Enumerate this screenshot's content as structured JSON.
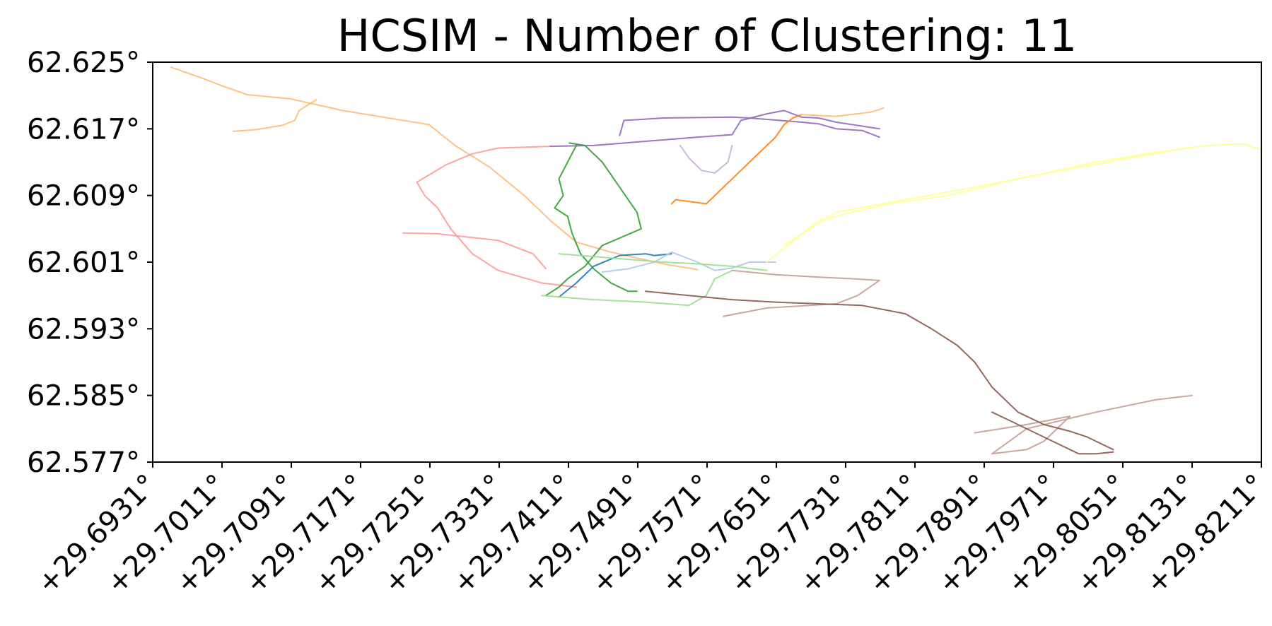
{
  "chart_data": {
    "type": "line",
    "title": "HCSIM - Number of Clustering: 11",
    "xlabel": "",
    "ylabel": "",
    "xlim": [
      29.6931,
      29.8211
    ],
    "ylim": [
      62.577,
      62.625
    ],
    "x_ticks": [
      29.6931,
      29.7011,
      29.7091,
      29.7171,
      29.7251,
      29.7331,
      29.7411,
      29.7491,
      29.7571,
      29.7651,
      29.7731,
      29.7811,
      29.7891,
      29.7971,
      29.8051,
      29.8131,
      29.8211
    ],
    "x_tick_labels": [
      "+29.6931°",
      "+29.7011°",
      "+29.7091°",
      "+29.7171°",
      "+29.7251°",
      "+29.7331°",
      "+29.7411°",
      "+29.7491°",
      "+29.7571°",
      "+29.7651°",
      "+29.7731°",
      "+29.7811°",
      "+29.7891°",
      "+29.7971°",
      "+29.8051°",
      "+29.8131°",
      "+29.8211°"
    ],
    "y_ticks": [
      62.625,
      62.617,
      62.609,
      62.601,
      62.593,
      62.585,
      62.577
    ],
    "y_tick_labels": [
      "62.625°",
      "62.617°",
      "62.609°",
      "62.601°",
      "62.593°",
      "62.585°",
      "62.577°"
    ],
    "grid": false,
    "legend": false,
    "series": [
      {
        "color": "#ffbb78",
        "x": [
          29.6952,
          29.6985,
          29.701,
          29.704,
          29.709,
          29.715,
          29.725,
          29.728,
          29.732,
          29.736,
          29.739,
          29.742,
          29.746,
          29.752,
          29.756
        ],
        "y": [
          62.6244,
          62.6232,
          62.6222,
          62.6211,
          62.6206,
          62.6192,
          62.6175,
          62.615,
          62.6124,
          62.609,
          62.606,
          62.6034,
          62.6022,
          62.6008,
          62.6001
        ]
      },
      {
        "color": "#ffbb78",
        "x": [
          29.7024,
          29.705,
          29.708,
          29.7095,
          29.71,
          29.712
        ],
        "y": [
          62.6167,
          62.6169,
          62.6174,
          62.618,
          62.6192,
          62.6205
        ]
      },
      {
        "color": "#ff9896",
        "x": [
          29.739,
          29.733,
          29.73,
          29.727,
          29.7236,
          29.7245,
          29.726,
          29.7275,
          29.73,
          29.733,
          29.738,
          29.742
        ],
        "y": [
          62.6149,
          62.6147,
          62.614,
          62.6127,
          62.6106,
          62.609,
          62.6075,
          62.605,
          62.602,
          62.6,
          62.5985,
          62.598
        ]
      },
      {
        "color": "#ff9896",
        "x": [
          29.722,
          29.726,
          29.733,
          29.737,
          29.7385
        ],
        "y": [
          62.6045,
          62.6044,
          62.6036,
          62.602,
          62.6002
        ]
      },
      {
        "color": "#9467bd",
        "x": [
          29.739,
          29.744,
          29.75,
          29.756,
          29.76,
          29.761,
          29.764,
          29.766,
          29.768,
          29.77,
          29.772,
          29.777
        ],
        "y": [
          62.6149,
          62.615,
          62.6155,
          62.616,
          62.6163,
          62.618,
          62.6188,
          62.6192,
          62.6184,
          62.6183,
          62.6178,
          62.617
        ]
      },
      {
        "color": "#9467bd",
        "x": [
          29.747,
          29.7475,
          29.752,
          29.76,
          29.762,
          29.768,
          29.77,
          29.772,
          29.775,
          29.777
        ],
        "y": [
          62.6162,
          62.618,
          62.6183,
          62.6184,
          62.6183,
          62.6178,
          62.6176,
          62.617,
          62.6168,
          62.616
        ]
      },
      {
        "color": "#c5b0d5",
        "x": [
          29.754,
          29.755,
          29.7565,
          29.758,
          29.7595,
          29.76
        ],
        "y": [
          62.615,
          62.6135,
          62.612,
          62.6117,
          62.613,
          62.615
        ]
      },
      {
        "color": "#2ca02c",
        "x": [
          29.742,
          29.741,
          29.74,
          29.7405,
          29.7395,
          29.741,
          29.7415,
          29.7425,
          29.744,
          29.746,
          29.748,
          29.749
        ],
        "y": [
          62.615,
          62.613,
          62.611,
          62.609,
          62.6075,
          62.6065,
          62.6045,
          62.602,
          62.6002,
          62.5985,
          62.5975,
          62.5975
        ]
      },
      {
        "color": "#2ca02c",
        "x": [
          29.7412,
          29.743,
          29.745,
          29.747,
          29.749,
          29.7495,
          29.745,
          29.743,
          29.741,
          29.74,
          29.7385
        ],
        "y": [
          62.6153,
          62.615,
          62.613,
          62.61,
          62.607,
          62.605,
          62.603,
          62.6005,
          62.599,
          62.598,
          62.597
        ]
      },
      {
        "color": "#1f77b4",
        "x": [
          29.74,
          29.742,
          29.744,
          29.747,
          29.75,
          29.751,
          29.753
        ],
        "y": [
          62.5968,
          62.5985,
          62.6005,
          62.6018,
          62.602,
          62.6018,
          62.602
        ]
      },
      {
        "color": "#aec7e8",
        "x": [
          29.745,
          29.748,
          29.751,
          29.753,
          29.756,
          29.758,
          29.76,
          29.762,
          29.765
        ],
        "y": [
          62.5998,
          62.6002,
          62.601,
          62.6022,
          62.601,
          62.6,
          62.6003,
          62.601,
          62.601
        ]
      },
      {
        "color": "#98df8a",
        "x": [
          29.738,
          29.744,
          29.75,
          29.755,
          29.757,
          29.758,
          29.76
        ],
        "y": [
          62.597,
          62.5965,
          62.5962,
          62.5958,
          62.597,
          62.599,
          62.6
        ]
      },
      {
        "color": "#98df8a",
        "x": [
          29.74,
          29.746,
          29.752,
          29.756,
          29.76,
          29.764
        ],
        "y": [
          62.602,
          62.6015,
          62.601,
          62.6008,
          62.6005,
          62.6
        ]
      },
      {
        "color": "#ff7f0e",
        "x": [
          29.753,
          29.7535,
          29.757,
          29.759,
          29.762,
          29.765,
          29.766,
          29.767,
          29.768
        ],
        "y": [
          62.608,
          62.6085,
          62.608,
          62.61,
          62.613,
          62.616,
          62.6175,
          62.6183,
          62.6187
        ]
      },
      {
        "color": "#ffbb78",
        "x": [
          29.768,
          29.772,
          29.776,
          29.7775
        ],
        "y": [
          62.6187,
          62.6185,
          62.619,
          62.6195
        ]
      },
      {
        "color": "#ffff99",
        "x": [
          29.764,
          29.77,
          29.778,
          29.785,
          29.793,
          29.802,
          29.809,
          29.815,
          29.819,
          29.8211
        ],
        "y": [
          62.601,
          62.606,
          62.608,
          62.609,
          62.611,
          62.613,
          62.6142,
          62.615,
          62.6152,
          62.6145
        ]
      },
      {
        "color": "#ffff99",
        "x": [
          29.766,
          29.772,
          29.78,
          29.788,
          29.797,
          29.806,
          29.813
        ],
        "y": [
          62.603,
          62.607,
          62.6085,
          62.61,
          62.6118,
          62.6135,
          62.6148
        ]
      },
      {
        "color": "#c49c94",
        "x": [
          29.76,
          29.765,
          29.77,
          29.774,
          29.777,
          29.7745,
          29.772,
          29.764,
          29.759
        ],
        "y": [
          62.6,
          62.5995,
          62.5992,
          62.599,
          62.5988,
          62.597,
          62.596,
          62.5955,
          62.5945
        ]
      },
      {
        "color": "#c49c94",
        "x": [
          29.788,
          29.794,
          29.799,
          29.796,
          29.794,
          29.79,
          29.794,
          29.802,
          29.809,
          29.8131
        ],
        "y": [
          62.5805,
          62.5815,
          62.5825,
          62.5795,
          62.5785,
          62.578,
          62.581,
          62.583,
          62.5845,
          62.585
        ]
      },
      {
        "color": "#8c564b",
        "x": [
          29.75,
          29.755,
          29.76,
          29.765,
          29.77,
          29.775,
          29.78,
          29.783,
          29.786,
          29.788,
          29.79,
          29.793,
          29.796,
          29.799,
          29.801,
          29.804
        ],
        "y": [
          62.5975,
          62.597,
          62.5965,
          62.5962,
          62.596,
          62.5958,
          62.5948,
          62.593,
          62.591,
          62.589,
          62.586,
          62.583,
          62.5815,
          62.5807,
          62.58,
          62.5785
        ]
      },
      {
        "color": "#8c564b",
        "x": [
          29.79,
          29.792,
          29.796,
          29.799,
          29.8,
          29.802,
          29.804
        ],
        "y": [
          62.583,
          62.582,
          62.58,
          62.5785,
          62.578,
          62.578,
          62.5782
        ]
      }
    ]
  }
}
